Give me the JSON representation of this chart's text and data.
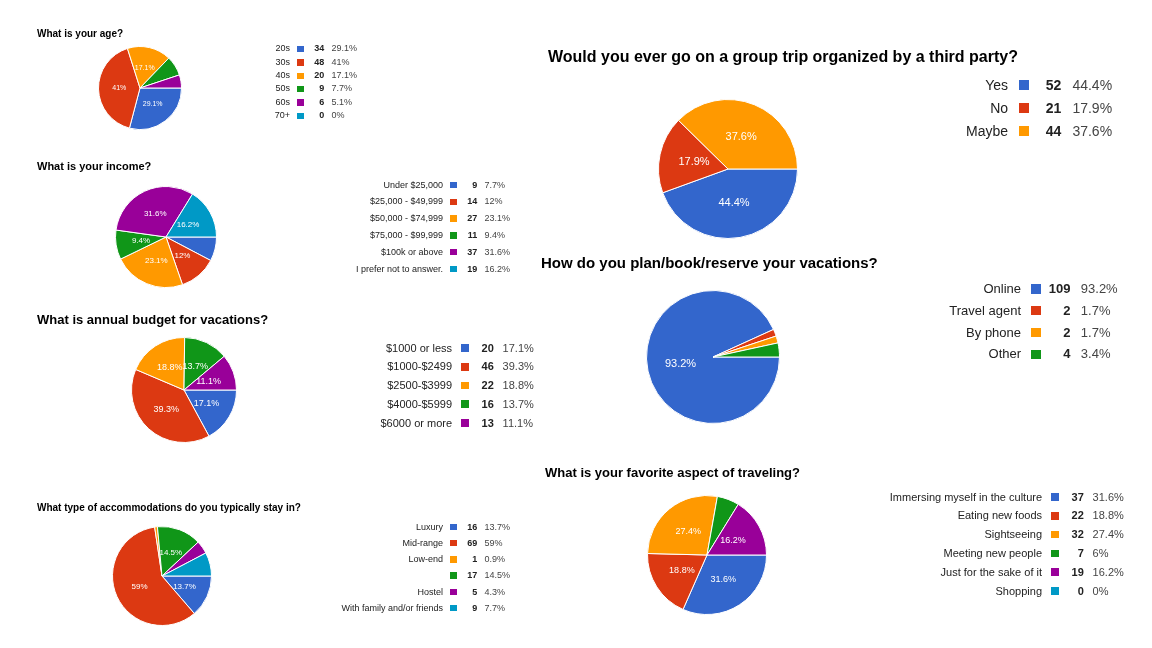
{
  "chart_data": [
    {
      "type": "pie",
      "title": "What is your age?",
      "categories": [
        "20s",
        "30s",
        "40s",
        "50s",
        "60s",
        "70+"
      ],
      "values": [
        29.1,
        41,
        17.1,
        7.7,
        5.1,
        0
      ],
      "value_labels": [
        "29.1%",
        "41%",
        "17.1%",
        "7.7%",
        "5.1%",
        "0%"
      ],
      "annotations": [
        "34",
        "48",
        "20",
        "9",
        "6",
        "0"
      ],
      "legend": "right",
      "colors": [
        "#3366cc",
        "#dc3912",
        "#ff9900",
        "#109618",
        "#990099",
        "#0099c6"
      ]
    },
    {
      "type": "pie",
      "title": "What is your income?",
      "categories": [
        "Under $25,000",
        "$25,000 - $49,999",
        "$50,000 - $74,999",
        "$75,000 - $99,999",
        "$100k or above",
        "I prefer not to answer."
      ],
      "values": [
        7.7,
        12,
        23.1,
        9.4,
        31.6,
        16.2
      ],
      "value_labels": [
        "7.7%",
        "12%",
        "23.1%",
        "9.4%",
        "31.6%",
        "16.2%"
      ],
      "annotations": [
        "9",
        "14",
        "27",
        "11",
        "37",
        "19"
      ],
      "legend": "right",
      "colors": [
        "#3366cc",
        "#dc3912",
        "#ff9900",
        "#109618",
        "#990099",
        "#0099c6"
      ]
    },
    {
      "type": "pie",
      "title": "What is annual budget for vacations?",
      "categories": [
        "$1000 or less",
        "$1000-$2499",
        "$2500-$3999",
        "$4000-$5999",
        "$6000 or more"
      ],
      "values": [
        17.1,
        39.3,
        18.8,
        13.7,
        11.1
      ],
      "value_labels": [
        "17.1%",
        "39.3%",
        "18.8%",
        "13.7%",
        "11.1%"
      ],
      "annotations": [
        "20",
        "46",
        "22",
        "16",
        "13"
      ],
      "legend": "right",
      "colors": [
        "#3366cc",
        "#dc3912",
        "#ff9900",
        "#109618",
        "#990099"
      ]
    },
    {
      "type": "pie",
      "title": "What type of accommodations do you typically stay in?",
      "categories": [
        "Luxury",
        "Mid-range",
        "Low-end",
        null,
        "Hostel",
        "With family and/or friends"
      ],
      "values": [
        13.7,
        59,
        0.9,
        14.5,
        4.3,
        7.7
      ],
      "value_labels": [
        "13.7%",
        "59%",
        "0.9%",
        "14.5%",
        "4.3%",
        "7.7%"
      ],
      "annotations": [
        "16",
        "69",
        "1",
        "17",
        "5",
        "9"
      ],
      "legend": "right",
      "colors": [
        "#3366cc",
        "#dc3912",
        "#ff9900",
        "#109618",
        "#990099",
        "#0099c6"
      ]
    },
    {
      "type": "pie",
      "title": "Would you ever go on a group trip organized by a third party?",
      "categories": [
        "Yes",
        "No",
        "Maybe"
      ],
      "values": [
        44.4,
        17.9,
        37.6
      ],
      "value_labels": [
        "44.4%",
        "17.9%",
        "37.6%"
      ],
      "annotations": [
        "52",
        "21",
        "44"
      ],
      "legend": "right",
      "colors": [
        "#3366cc",
        "#dc3912",
        "#ff9900"
      ]
    },
    {
      "type": "pie",
      "title": "How do you plan/book/reserve your vacations?",
      "categories": [
        "Online",
        "Travel agent",
        "By phone",
        "Other"
      ],
      "values": [
        93.2,
        1.7,
        1.7,
        3.4
      ],
      "value_labels": [
        "93.2%",
        "1.7%",
        "1.7%",
        "3.4%"
      ],
      "annotations": [
        "109",
        "2",
        "2",
        "4"
      ],
      "legend": "right",
      "colors": [
        "#3366cc",
        "#dc3912",
        "#ff9900",
        "#109618"
      ]
    },
    {
      "type": "pie",
      "title": "What is your favorite aspect of traveling?",
      "categories": [
        "Immersing myself in the culture",
        "Eating new foods",
        "Sightseeing",
        "Meeting new people",
        "Just for the sake of it",
        "Shopping"
      ],
      "values": [
        31.6,
        18.8,
        27.4,
        6,
        16.2,
        0
      ],
      "value_labels": [
        "31.6%",
        "18.8%",
        "27.4%",
        "6%",
        "16.2%",
        "0%"
      ],
      "annotations": [
        "37",
        "22",
        "32",
        "7",
        "19",
        "0"
      ],
      "legend": "right",
      "colors": [
        "#3366cc",
        "#dc3912",
        "#ff9900",
        "#109618",
        "#990099",
        "#0099c6"
      ]
    }
  ]
}
